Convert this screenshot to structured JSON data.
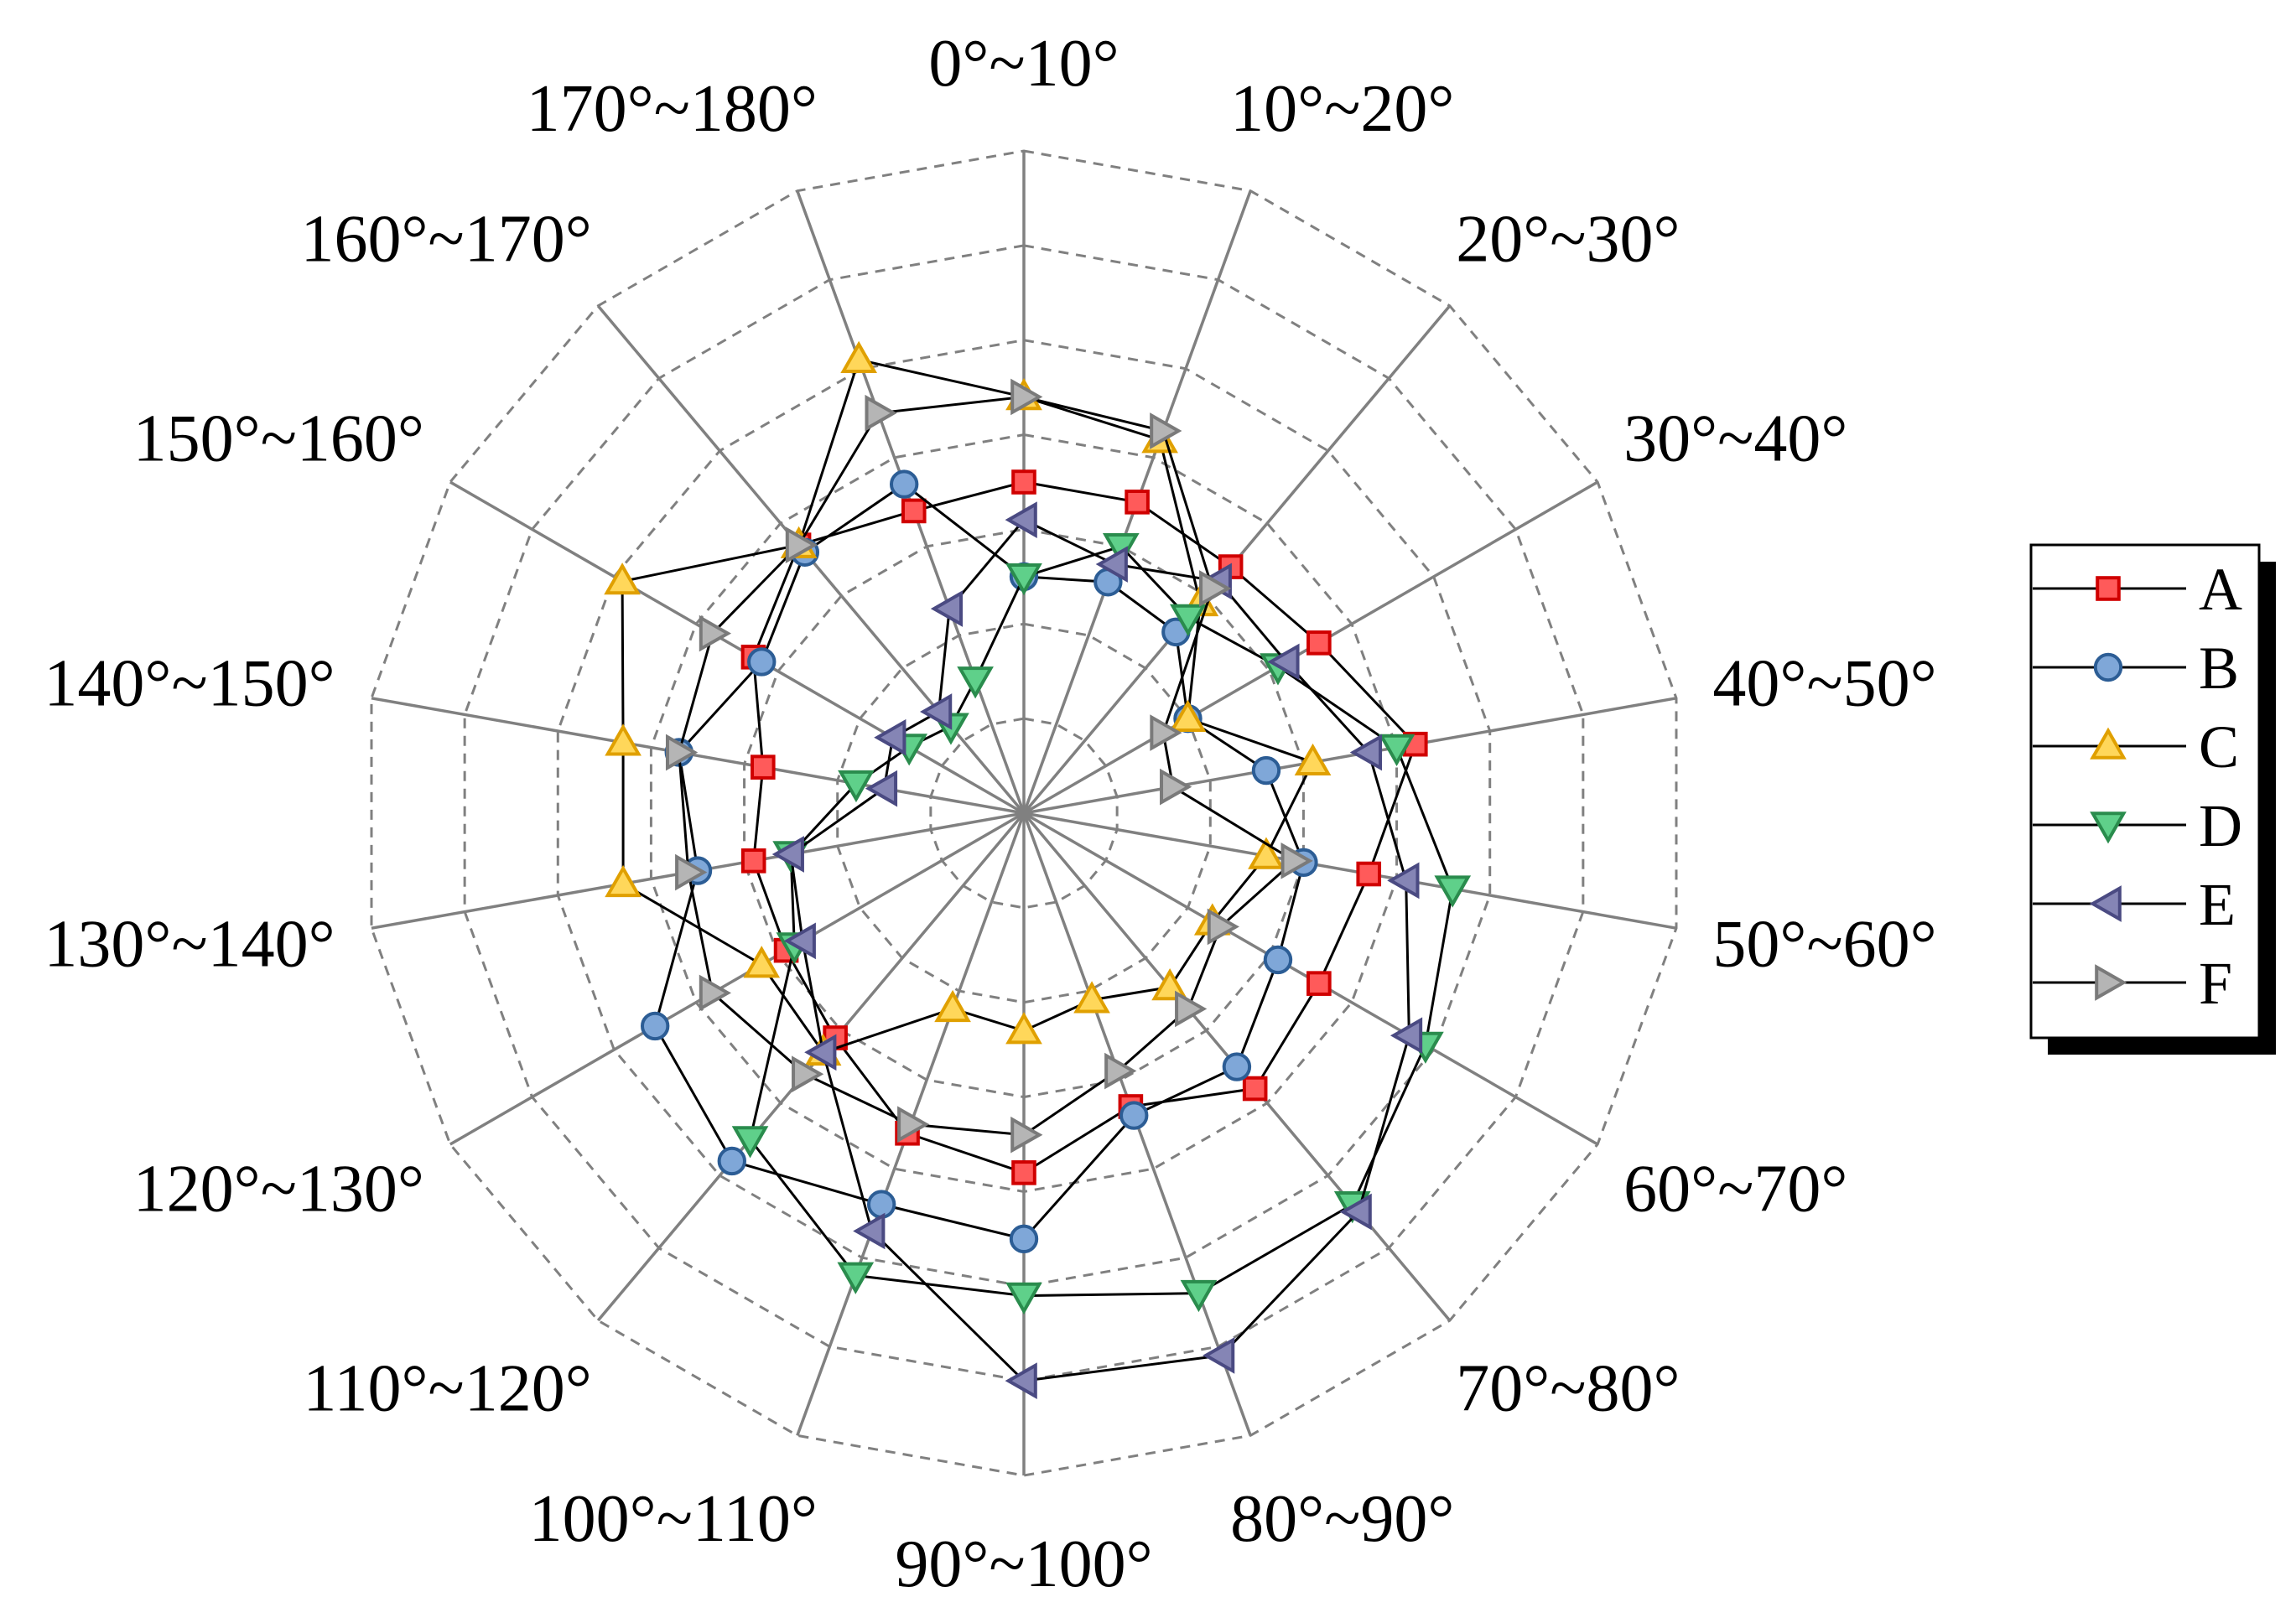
{
  "chart_data": {
    "type": "radar",
    "categories": [
      "0°~10°",
      "10°~20°",
      "20°~30°",
      "30°~40°",
      "40°~50°",
      "50°~60°",
      "60°~70°",
      "70°~80°",
      "80°~90°",
      "90°~100°",
      "100°~110°",
      "110°~120°",
      "120°~130°",
      "130°~140°",
      "140°~150°",
      "150°~160°",
      "160°~170°",
      "170°~180°"
    ],
    "rlim": [
      0,
      7
    ],
    "rings": [
      1,
      2,
      3,
      4,
      5,
      6,
      7
    ],
    "grid": true,
    "legend_position": "right",
    "series": [
      {
        "name": "A",
        "marker": "square",
        "color": "#ff5a5a",
        "edge": "#d00000",
        "values": [
          3.5,
          3.5,
          3.4,
          3.6,
          4.2,
          3.7,
          3.6,
          3.8,
          3.3,
          3.8,
          3.6,
          3.1,
          2.9,
          2.9,
          2.8,
          3.3,
          3.7,
          3.4
        ]
      },
      {
        "name": "B",
        "marker": "circle",
        "color": "#7fa7d8",
        "edge": "#2c5d95",
        "values": [
          2.5,
          2.6,
          2.5,
          2.0,
          2.6,
          3.0,
          3.1,
          3.5,
          3.4,
          4.5,
          4.4,
          4.8,
          4.5,
          3.5,
          3.7,
          3.2,
          3.6,
          3.7
        ]
      },
      {
        "name": "C",
        "marker": "triangle-up",
        "color": "#ffd75a",
        "edge": "#e0a000",
        "values": [
          4.4,
          4.2,
          2.9,
          2.0,
          3.1,
          2.6,
          2.3,
          2.4,
          2.1,
          2.3,
          2.2,
          3.3,
          3.2,
          4.3,
          4.3,
          4.9,
          3.7,
          5.1
        ]
      },
      {
        "name": "D",
        "marker": "triangle-down",
        "color": "#5fd08a",
        "edge": "#2a8c4d",
        "values": [
          2.5,
          3.0,
          2.7,
          3.1,
          4.0,
          4.6,
          4.9,
          5.4,
          5.4,
          5.1,
          5.2,
          4.5,
          2.8,
          2.5,
          1.8,
          1.4,
          1.2,
          1.5
        ]
      },
      {
        "name": "E",
        "marker": "triangle-left",
        "color": "#8585b5",
        "edge": "#4a4a82",
        "values": [
          3.1,
          2.8,
          3.2,
          3.2,
          3.7,
          4.1,
          4.7,
          5.5,
          6.1,
          6.0,
          4.7,
          3.3,
          2.7,
          2.5,
          1.5,
          1.6,
          1.4,
          2.3
        ]
      },
      {
        "name": "F",
        "marker": "triangle-right",
        "color": "#b5b5b5",
        "edge": "#7a7a7a",
        "values": [
          4.4,
          4.3,
          3.1,
          1.7,
          1.6,
          2.9,
          2.4,
          2.7,
          2.9,
          3.4,
          3.5,
          3.6,
          3.8,
          3.6,
          3.7,
          3.8,
          3.7,
          4.5
        ]
      }
    ]
  }
}
